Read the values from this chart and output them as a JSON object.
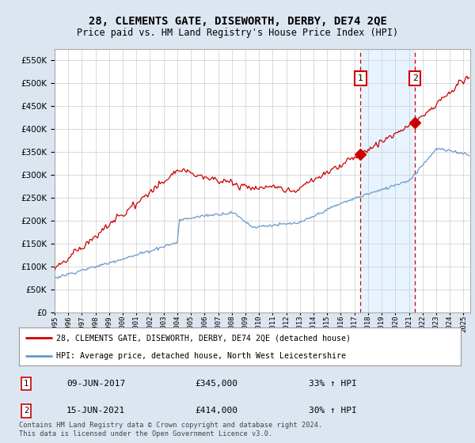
{
  "title": "28, CLEMENTS GATE, DISEWORTH, DERBY, DE74 2QE",
  "subtitle": "Price paid vs. HM Land Registry's House Price Index (HPI)",
  "legend_line1": "28, CLEMENTS GATE, DISEWORTH, DERBY, DE74 2QE (detached house)",
  "legend_line2": "HPI: Average price, detached house, North West Leicestershire",
  "annotation1_date": "09-JUN-2017",
  "annotation1_price": "£345,000",
  "annotation1_hpi": "33% ↑ HPI",
  "annotation1_year": 2017.44,
  "annotation1_value": 345000,
  "annotation2_date": "15-JUN-2021",
  "annotation2_price": "£414,000",
  "annotation2_hpi": "30% ↑ HPI",
  "annotation2_year": 2021.44,
  "annotation2_value": 414000,
  "footer": "Contains HM Land Registry data © Crown copyright and database right 2024.\nThis data is licensed under the Open Government Licence v3.0.",
  "ylim": [
    0,
    575000
  ],
  "xlim_start": 1995.0,
  "xlim_end": 2025.5,
  "property_color": "#cc0000",
  "hpi_color": "#6699cc",
  "background_color": "#dce6f1",
  "plot_bg_color": "#ffffff",
  "grid_color": "#cccccc",
  "shade_color": "#ddeeff"
}
